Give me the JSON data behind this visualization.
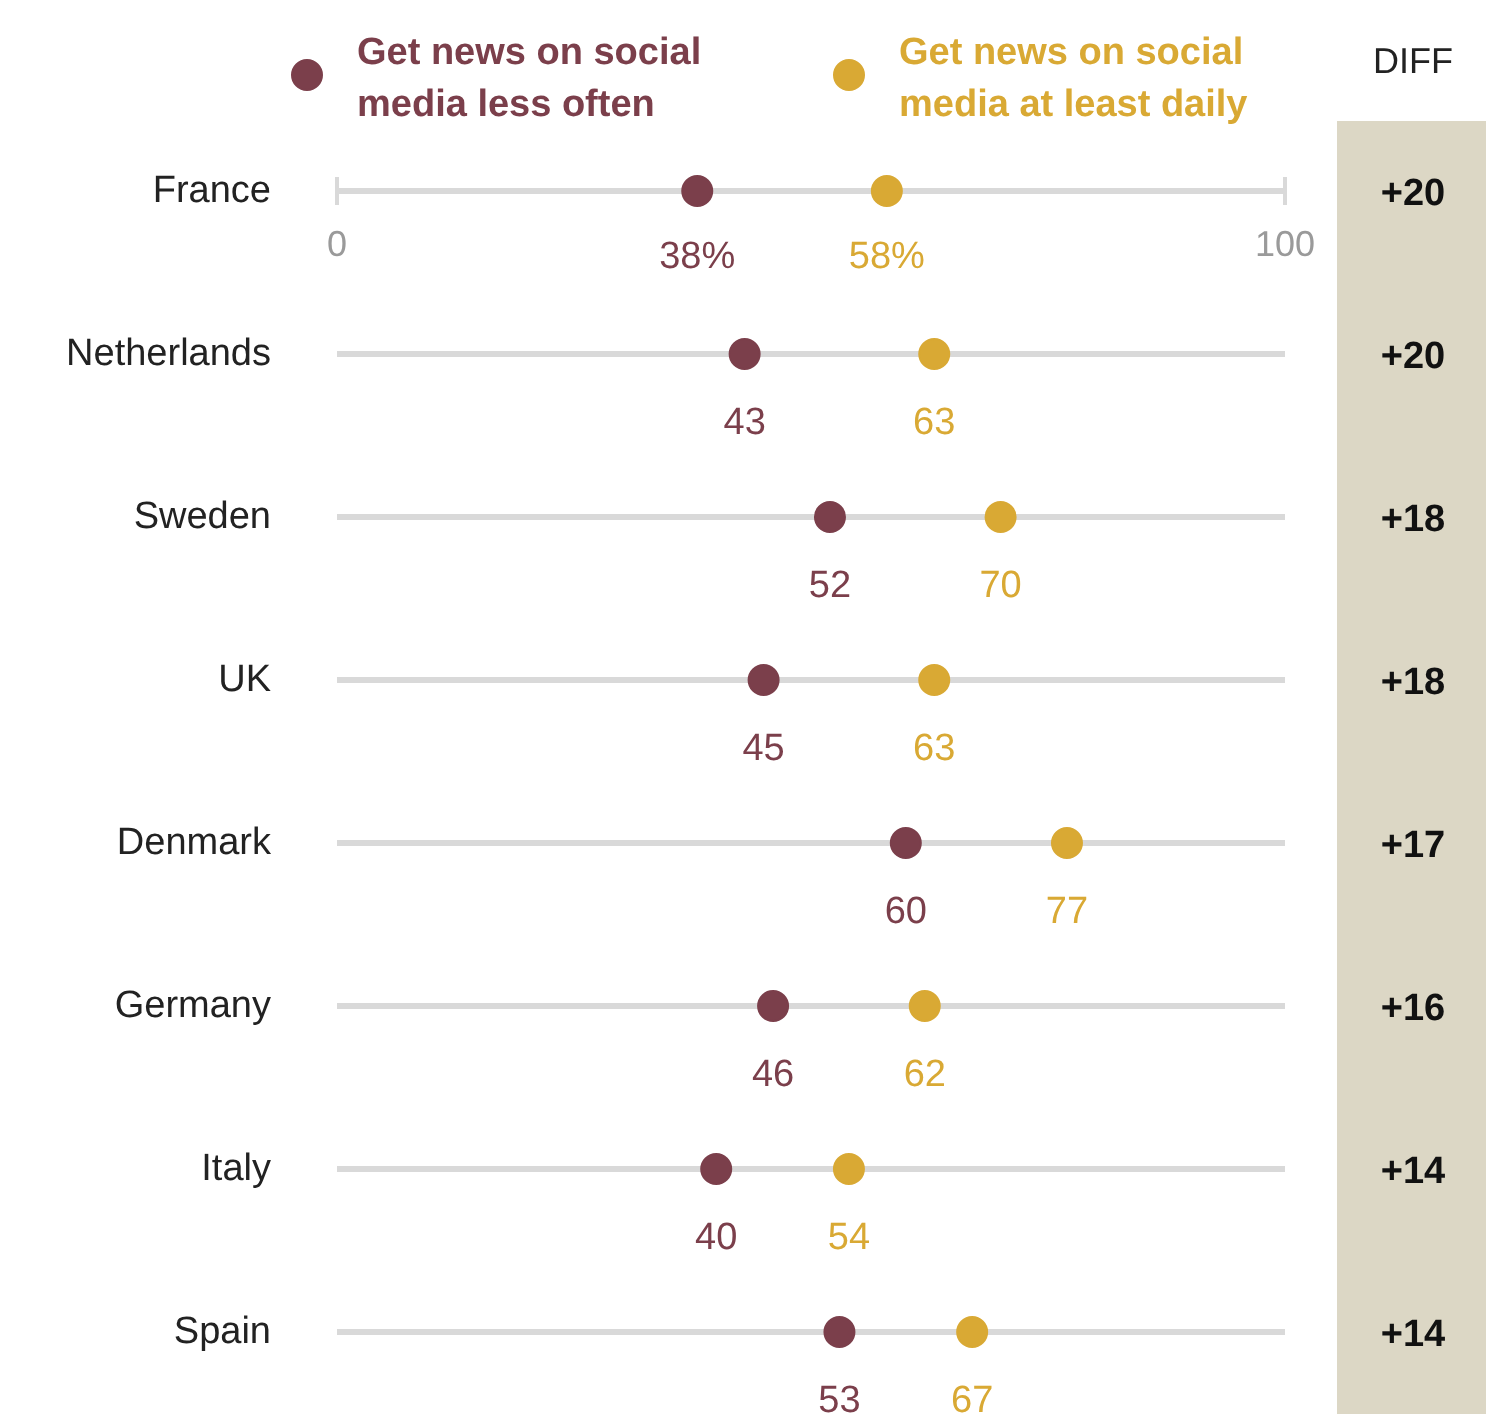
{
  "chart_data": {
    "type": "scatter",
    "orientation": "horizontal",
    "categories": [
      "France",
      "Netherlands",
      "Sweden",
      "UK",
      "Denmark",
      "Germany",
      "Italy",
      "Spain"
    ],
    "xlim": [
      0,
      100
    ],
    "xticks": [
      0,
      100
    ],
    "legend": "top",
    "marker": "circle",
    "grid": false,
    "series": [
      {
        "name": "Get news on social media less often",
        "color": "#7b3f4b",
        "values": [
          38,
          43,
          52,
          45,
          60,
          46,
          40,
          53
        ],
        "value_labels": [
          "38%",
          "43",
          "52",
          "45",
          "60",
          "46",
          "40",
          "53"
        ]
      },
      {
        "name": "Get news on social media at least daily",
        "color": "#d9a934",
        "values": [
          58,
          63,
          70,
          63,
          77,
          62,
          54,
          67
        ],
        "value_labels": [
          "58%",
          "63",
          "70",
          "63",
          "77",
          "62",
          "54",
          "67"
        ]
      }
    ],
    "annotations": [
      "DIFF",
      "+20",
      "+20",
      "+18",
      "+18",
      "+17",
      "+16",
      "+14",
      "+14"
    ]
  }
}
